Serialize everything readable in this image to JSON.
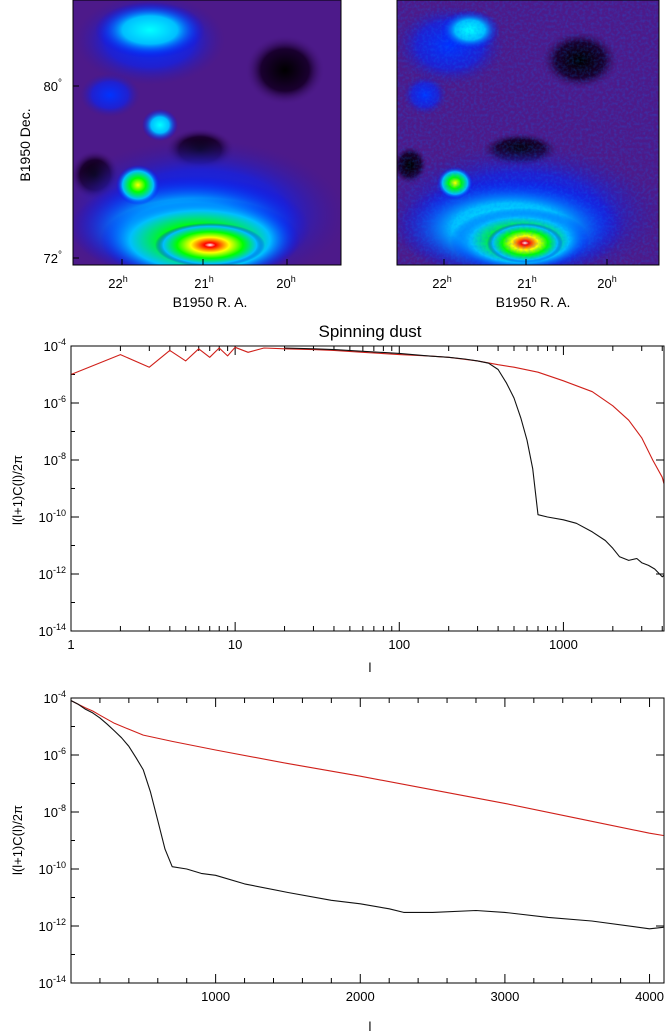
{
  "figure": {
    "maps": [
      {
        "id": "map-left",
        "ylabel": "B1950 Dec.",
        "xlabel": "B1950 R. A.",
        "yticks": [
          {
            "base": "80",
            "sup": "°"
          },
          {
            "base": "72",
            "sup": "°"
          }
        ],
        "xticks": [
          {
            "base": "22",
            "sup": "h"
          },
          {
            "base": "21",
            "sup": "h"
          },
          {
            "base": "20",
            "sup": "h"
          }
        ],
        "colormap": [
          "#000000",
          "#2a0045",
          "#4d1a8a",
          "#0000ff",
          "#00bfff",
          "#00ff00",
          "#ffff00",
          "#ff0000",
          "#ffffff"
        ]
      },
      {
        "id": "map-right",
        "ylabel": "",
        "xlabel": "B1950 R. A.",
        "yticks": [],
        "xticks": [
          {
            "base": "22",
            "sup": "h"
          },
          {
            "base": "21",
            "sup": "h"
          },
          {
            "base": "20",
            "sup": "h"
          }
        ],
        "colormap": [
          "#000000",
          "#2a0045",
          "#4d1a8a",
          "#0000ff",
          "#00bfff",
          "#00ff00",
          "#ffff00",
          "#ff0000",
          "#ffffff"
        ]
      }
    ]
  },
  "chart_data": [
    {
      "type": "line",
      "title": "Spinning dust",
      "xlabel": "l",
      "ylabel": "l(l+1)C(l)/2π",
      "xscale": "log",
      "yscale": "log",
      "xlim": [
        1,
        4100
      ],
      "ylim": [
        1e-14,
        0.0001
      ],
      "xticks": [
        "1",
        "10",
        "100",
        "1000"
      ],
      "yticks": [
        {
          "base": "10",
          "exp": "-4"
        },
        {
          "base": "10",
          "exp": "-6"
        },
        {
          "base": "10",
          "exp": "-8"
        },
        {
          "base": "10",
          "exp": "-10"
        },
        {
          "base": "10",
          "exp": "-12"
        },
        {
          "base": "10",
          "exp": "-14"
        }
      ],
      "grid": false,
      "series": [
        {
          "color": "#d0201a",
          "x": [
            1,
            2,
            3,
            4,
            5,
            6,
            7,
            8,
            9,
            10,
            12,
            15,
            20,
            30,
            40,
            60,
            100,
            150,
            200,
            300,
            400,
            500,
            700,
            1000,
            1500,
            2000,
            2500,
            3000,
            3500,
            4000,
            4096
          ],
          "y": [
            1e-05,
            5e-05,
            1.8e-05,
            7e-05,
            3e-05,
            8e-05,
            4e-05,
            8.5e-05,
            4.5e-05,
            9e-05,
            6e-05,
            8.5e-05,
            8e-05,
            7.5e-05,
            7e-05,
            6e-05,
            5e-05,
            4.5e-05,
            4e-05,
            3e-05,
            2.2e-05,
            1.8e-05,
            1.2e-05,
            6e-06,
            2.5e-06,
            8e-07,
            2.5e-07,
            6e-08,
            1e-08,
            2.5e-09,
            1.5e-09
          ]
        },
        {
          "color": "#111111",
          "x": [
            20,
            30,
            40,
            60,
            100,
            150,
            200,
            250,
            300,
            350,
            400,
            450,
            500,
            550,
            600,
            650,
            700,
            800,
            1000,
            1200,
            1500,
            1800,
            2000,
            2200,
            2500,
            2800,
            3000,
            3300,
            3600,
            4000,
            4096
          ],
          "y": [
            8.5e-05,
            8e-05,
            7.5e-05,
            6.5e-05,
            5.5e-05,
            4.5e-05,
            4e-05,
            3.5e-05,
            3e-05,
            2.5e-05,
            1.5e-05,
            5e-06,
            1.5e-06,
            3e-07,
            5e-08,
            5e-09,
            1.2e-10,
            1e-10,
            8e-11,
            6e-11,
            3e-11,
            1.5e-11,
            8e-12,
            4e-12,
            3e-12,
            3.5e-12,
            2.5e-12,
            2e-12,
            1.5e-12,
            8e-13,
            9e-13
          ]
        }
      ]
    },
    {
      "type": "line",
      "title": "",
      "xlabel": "l",
      "ylabel": "l(l+1)C(l)/2π",
      "xscale": "linear",
      "yscale": "log",
      "xlim": [
        0,
        4100
      ],
      "ylim": [
        1e-14,
        0.0001
      ],
      "xticks": [
        "1000",
        "2000",
        "3000",
        "4000"
      ],
      "yticks": [
        {
          "base": "10",
          "exp": "-4"
        },
        {
          "base": "10",
          "exp": "-6"
        },
        {
          "base": "10",
          "exp": "-8"
        },
        {
          "base": "10",
          "exp": "-10"
        },
        {
          "base": "10",
          "exp": "-12"
        },
        {
          "base": "10",
          "exp": "-14"
        }
      ],
      "grid": false,
      "series": [
        {
          "color": "#d0201a",
          "x": [
            2,
            50,
            100,
            150,
            200,
            300,
            400,
            500,
            700,
            1000,
            1500,
            2000,
            2500,
            3000,
            3500,
            4000,
            4096
          ],
          "y": [
            8e-05,
            6e-05,
            4.5e-05,
            3.5e-05,
            2.5e-05,
            1.3e-05,
            8e-06,
            5e-06,
            3e-06,
            1.5e-06,
            5e-07,
            1.8e-07,
            6e-08,
            2e-08,
            6e-09,
            1.8e-09,
            1.5e-09
          ]
        },
        {
          "color": "#111111",
          "x": [
            2,
            50,
            100,
            150,
            200,
            250,
            300,
            350,
            400,
            450,
            500,
            550,
            600,
            650,
            700,
            800,
            900,
            1000,
            1200,
            1500,
            1800,
            2000,
            2200,
            2300,
            2500,
            2800,
            3000,
            3300,
            3600,
            4000,
            4096
          ],
          "y": [
            8e-05,
            6e-05,
            4e-05,
            3e-05,
            2e-05,
            1.2e-05,
            7e-06,
            4e-06,
            2e-06,
            8e-07,
            3e-07,
            5e-08,
            5e-09,
            5e-10,
            1.2e-10,
            1e-10,
            7e-11,
            6e-11,
            3e-11,
            1.5e-11,
            8e-12,
            6e-12,
            4e-12,
            3e-12,
            3e-12,
            3.5e-12,
            3e-12,
            2e-12,
            1.5e-12,
            8e-13,
            9e-13
          ]
        }
      ]
    }
  ]
}
